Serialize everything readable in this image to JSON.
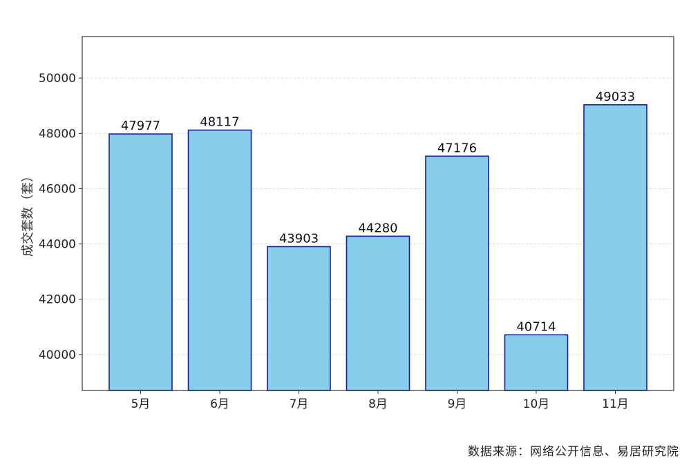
{
  "chart_data": {
    "type": "bar",
    "categories": [
      "5月",
      "6月",
      "7月",
      "8月",
      "9月",
      "10月",
      "11月"
    ],
    "values": [
      47977,
      48117,
      43903,
      44280,
      47176,
      40714,
      49033
    ],
    "data_labels": [
      "47977",
      "48117",
      "43903",
      "44280",
      "47176",
      "40714",
      "49033"
    ],
    "ylabel": "成交套数（套）",
    "yticks": [
      40000,
      42000,
      44000,
      46000,
      48000,
      50000
    ],
    "ytick_labels": [
      "40000",
      "42000",
      "44000",
      "46000",
      "48000",
      "50000"
    ],
    "ylim": [
      38700,
      51500
    ],
    "grid": true,
    "bar_color": "#87CEEB",
    "bar_edge_color": "#1a1a9c"
  },
  "source_note": "数据来源：网络公开信息、易居研究院"
}
